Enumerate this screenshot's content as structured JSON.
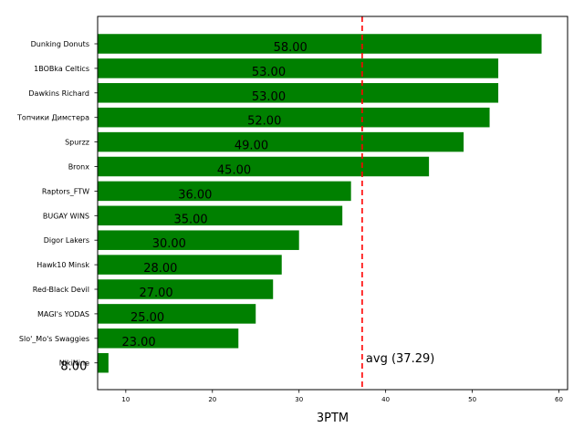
{
  "chart_data": {
    "type": "bar",
    "orientation": "horizontal",
    "categories": [
      "Dunking Donuts",
      "1BOBka Celtics",
      "Dawkins Richard",
      "Топчики Димстера",
      "Spurzz",
      "Bronx",
      "Raptors_FTW",
      "BUGAY WINS",
      "Digor Lakers",
      "Hawk10 Minsk",
      "Red-Black Devil",
      "MAGI's YODAS",
      "Slo'_Mo's Swaggies",
      "NikiNine"
    ],
    "values": [
      58,
      53,
      53,
      52,
      49,
      45,
      36,
      35,
      30,
      28,
      27,
      25,
      23,
      8
    ],
    "value_labels": [
      "58.00",
      "53.00",
      "53.00",
      "52.00",
      "49.00",
      "45.00",
      "36.00",
      "35.00",
      "30.00",
      "28.00",
      "27.00",
      "25.00",
      "23.00",
      "8.00"
    ],
    "xlabel": "3PTM",
    "ylabel": "",
    "title": "",
    "xlim": [
      6.75,
      61
    ],
    "xticks": [
      10,
      20,
      30,
      40,
      50,
      60
    ],
    "bar_color": "#008000",
    "average": {
      "value": 37.29,
      "label": "avg (37.29)",
      "color": "#ff0000",
      "style": "dashed"
    },
    "grid": false
  }
}
